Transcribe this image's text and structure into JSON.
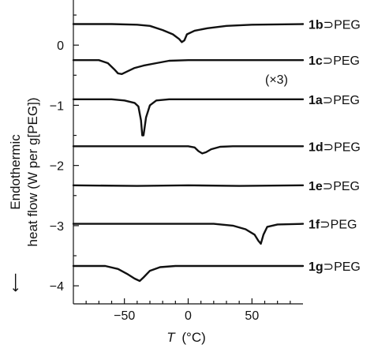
{
  "chart_data": {
    "type": "line",
    "xlabel_var": "T",
    "xlabel_unit": "(°C)",
    "ylabel_lines": [
      "Endothermic",
      "heat flow (W per g[PEG])"
    ],
    "ylabel_arrow": "⟵",
    "annotation": "(×3)",
    "xlim": [
      -90,
      90
    ],
    "ylim": [
      -4.3,
      0.75
    ],
    "xticks": [
      -50,
      0,
      50
    ],
    "yticks": [
      0,
      -1,
      -2,
      -3,
      -4
    ],
    "xtick_labels": [
      "−50",
      "0",
      "50"
    ],
    "ytick_labels": [
      "0",
      "−1",
      "−2",
      "−3",
      "−4"
    ],
    "grid": false,
    "series": [
      {
        "name_bold": "1b",
        "name_rest": "⊃PEG",
        "points": [
          [
            -90,
            0.35
          ],
          [
            -60,
            0.35
          ],
          [
            -40,
            0.34
          ],
          [
            -30,
            0.32
          ],
          [
            -20,
            0.25
          ],
          [
            -12,
            0.18
          ],
          [
            -7,
            0.1
          ],
          [
            -5,
            0.05
          ],
          [
            -3,
            0.08
          ],
          [
            -1,
            0.18
          ],
          [
            5,
            0.24
          ],
          [
            15,
            0.28
          ],
          [
            30,
            0.32
          ],
          [
            50,
            0.34
          ],
          [
            90,
            0.35
          ]
        ]
      },
      {
        "name_bold": "1c",
        "name_rest": "⊃PEG",
        "points": [
          [
            -90,
            -0.25
          ],
          [
            -70,
            -0.25
          ],
          [
            -63,
            -0.3
          ],
          [
            -58,
            -0.4
          ],
          [
            -55,
            -0.47
          ],
          [
            -52,
            -0.48
          ],
          [
            -48,
            -0.44
          ],
          [
            -42,
            -0.38
          ],
          [
            -35,
            -0.34
          ],
          [
            -25,
            -0.3
          ],
          [
            -15,
            -0.26
          ],
          [
            0,
            -0.25
          ],
          [
            90,
            -0.25
          ]
        ]
      },
      {
        "name_bold": "1a",
        "name_rest": "⊃PEG",
        "points": [
          [
            -90,
            -0.9
          ],
          [
            -60,
            -0.9
          ],
          [
            -50,
            -0.92
          ],
          [
            -42,
            -0.96
          ],
          [
            -39,
            -1.02
          ],
          [
            -37,
            -1.25
          ],
          [
            -36,
            -1.5
          ],
          [
            -35,
            -1.5
          ],
          [
            -33,
            -1.2
          ],
          [
            -30,
            -1.0
          ],
          [
            -25,
            -0.92
          ],
          [
            -15,
            -0.9
          ],
          [
            90,
            -0.9
          ]
        ]
      },
      {
        "name_bold": "1d",
        "name_rest": "⊃PEG",
        "points": [
          [
            -90,
            -1.68
          ],
          [
            0,
            -1.68
          ],
          [
            5,
            -1.7
          ],
          [
            8,
            -1.76
          ],
          [
            11,
            -1.8
          ],
          [
            14,
            -1.78
          ],
          [
            18,
            -1.73
          ],
          [
            25,
            -1.69
          ],
          [
            35,
            -1.68
          ],
          [
            90,
            -1.68
          ]
        ]
      },
      {
        "name_bold": "1e",
        "name_rest": "⊃PEG",
        "points": [
          [
            -90,
            -2.33
          ],
          [
            -40,
            -2.34
          ],
          [
            0,
            -2.33
          ],
          [
            40,
            -2.34
          ],
          [
            90,
            -2.33
          ]
        ]
      },
      {
        "name_bold": "1f",
        "name_rest": "⊃PEG",
        "points": [
          [
            -90,
            -2.97
          ],
          [
            20,
            -2.97
          ],
          [
            35,
            -3.0
          ],
          [
            45,
            -3.06
          ],
          [
            52,
            -3.15
          ],
          [
            55,
            -3.25
          ],
          [
            57,
            -3.3
          ],
          [
            59,
            -3.15
          ],
          [
            62,
            -3.02
          ],
          [
            70,
            -2.98
          ],
          [
            90,
            -2.97
          ]
        ]
      },
      {
        "name_bold": "1g",
        "name_rest": "⊃PEG",
        "points": [
          [
            -90,
            -3.67
          ],
          [
            -65,
            -3.67
          ],
          [
            -55,
            -3.72
          ],
          [
            -48,
            -3.8
          ],
          [
            -42,
            -3.88
          ],
          [
            -38,
            -3.92
          ],
          [
            -35,
            -3.86
          ],
          [
            -30,
            -3.75
          ],
          [
            -22,
            -3.69
          ],
          [
            -10,
            -3.67
          ],
          [
            90,
            -3.67
          ]
        ]
      }
    ]
  }
}
